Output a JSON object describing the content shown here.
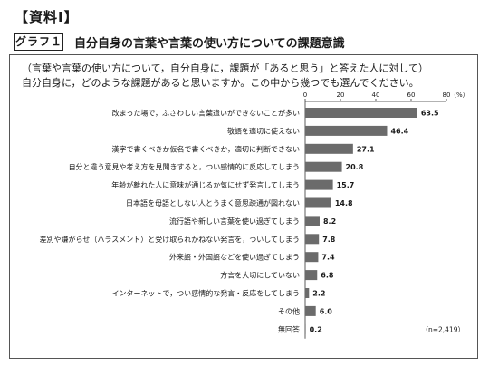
{
  "header": {
    "shiryo": "【資料Ⅰ】",
    "graph_label": "グラフ１",
    "graph_title": "自分自身の言葉や言葉の使い方についての課題意識"
  },
  "question": {
    "line1": "（言葉や言葉の使い方について，自分自身に，課題が「あると思う」と答えた人に対して）",
    "line2": "自分自身に，どのような課題があると思いますか。この中から幾つでも選んでください。"
  },
  "chart_data": {
    "type": "bar",
    "orientation": "horizontal",
    "categories": [
      "改まった場で，ふさわしい言葉遣いができないことが多い",
      "敬語を適切に使えない",
      "漢字で書くべきか仮名で書くべきか，適切に判断できない",
      "自分と違う意見や考え方を見聞きすると，つい感情的に反応してしまう",
      "年齢が離れた人に意味が通じるか気にせず発言してしまう",
      "日本語を母語としない人とうまく意思疎通が図れない",
      "流行語や新しい言葉を使い過ぎてしまう",
      "差別や嫌がらせ（ハラスメント）と受け取られかねない発言を，ついしてしまう",
      "外来語・外国語などを使い過ぎてしまう",
      "方言を大切にしていない",
      "インターネットで，つい感情的な発言・反応をしてしまう",
      "その他",
      "無回答"
    ],
    "values": [
      63.5,
      46.4,
      27.1,
      20.8,
      15.7,
      14.8,
      8.2,
      7.8,
      7.4,
      6.8,
      2.2,
      6.0,
      0.2
    ],
    "value_labels": [
      "63.5",
      "46.4",
      "27.1",
      "20.8",
      "15.7",
      "14.8",
      "8.2",
      "7.8",
      "7.4",
      "6.8",
      "2.2",
      "6.0",
      "0.2"
    ],
    "xlim": [
      0,
      80
    ],
    "x_ticks": [
      "0",
      "20",
      "40",
      "60",
      "80"
    ],
    "unit_label": "（%）",
    "note": "（n=2,419）",
    "bar_color": "#6b6b6b",
    "grid": false
  }
}
